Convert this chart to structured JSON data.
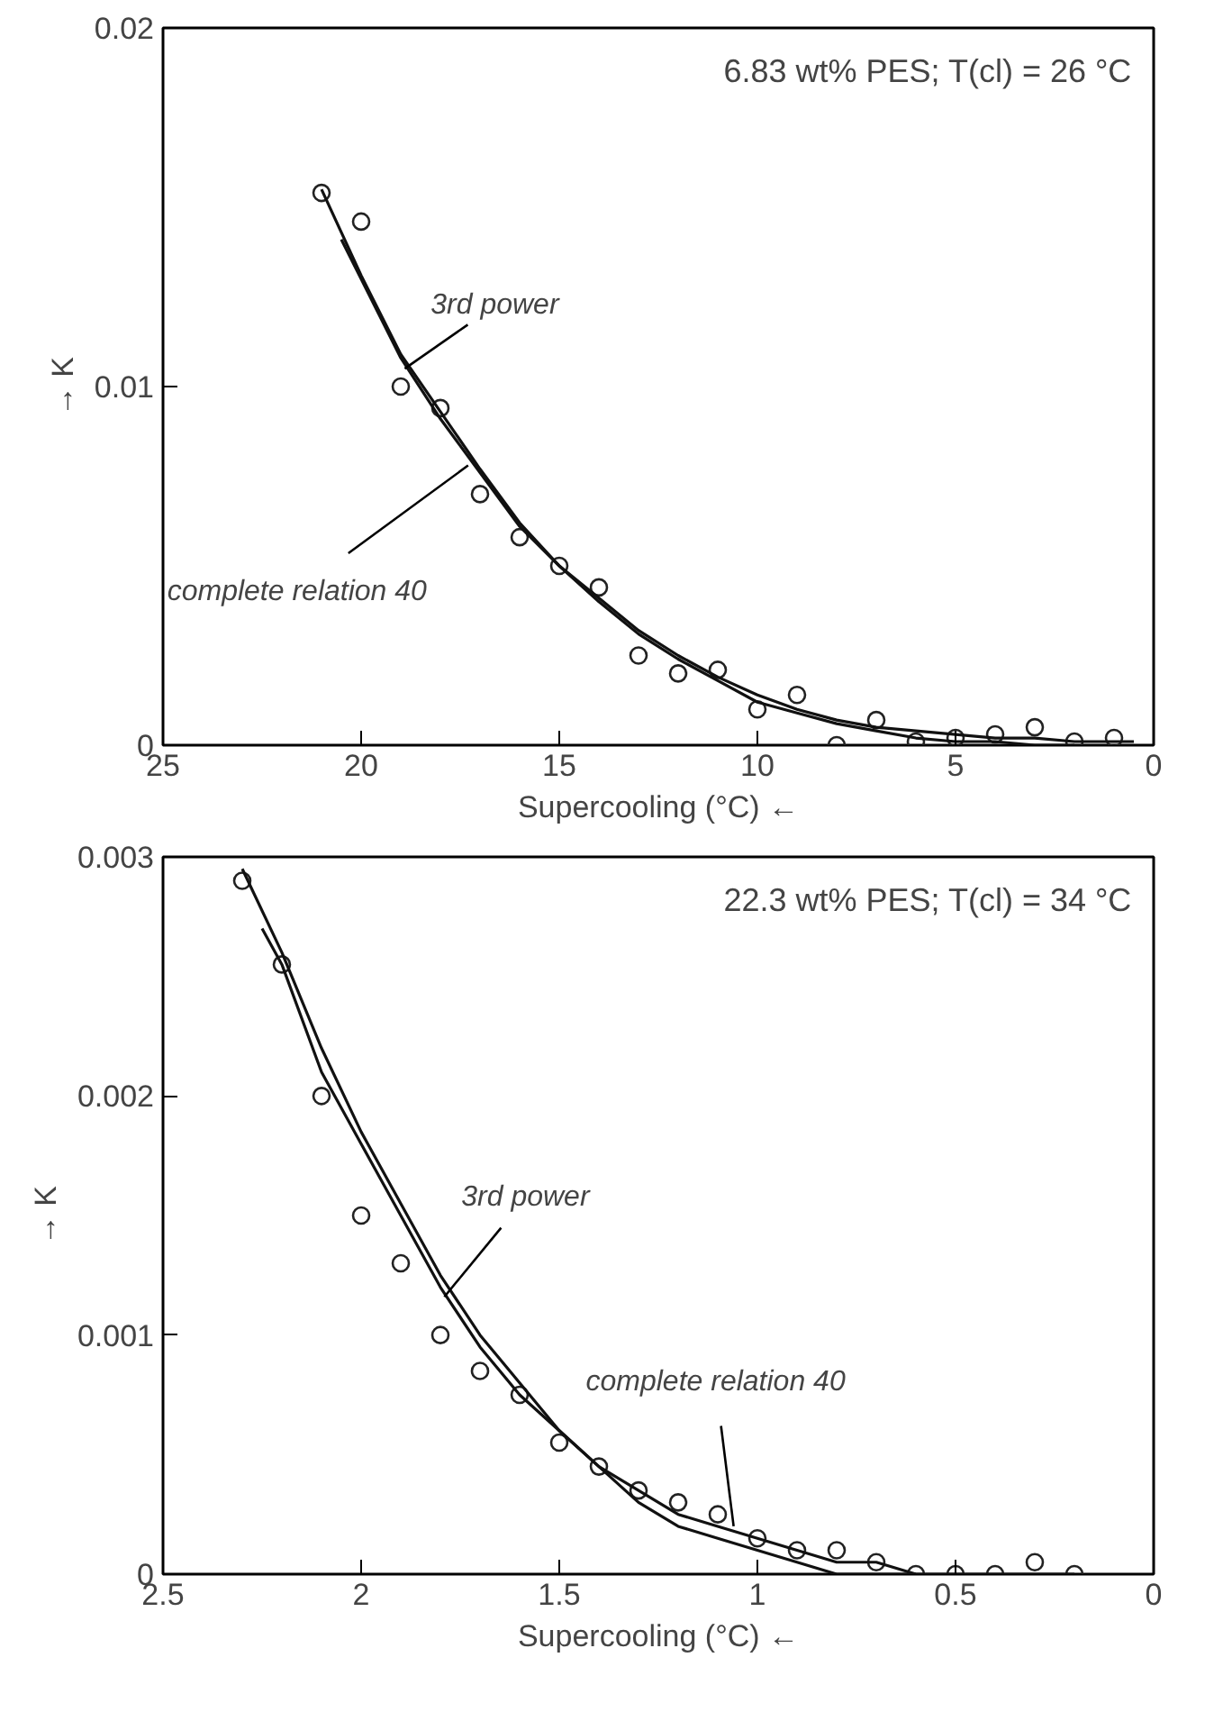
{
  "chart_data": [
    {
      "type": "scatter",
      "xlabel": "Supercooling (°C) ←",
      "ylabel": "→ K",
      "xlim": [
        25,
        0
      ],
      "ylim": [
        0,
        0.02
      ],
      "xticks": [
        25,
        20,
        15,
        10,
        5,
        0
      ],
      "yticks": [
        0,
        0.01,
        0.02
      ],
      "annotations": [
        {
          "text": "6.83 wt% PES; T(cl) = 26 °C"
        },
        {
          "text": "3rd power",
          "x": 18.9,
          "y": 0.0105
        },
        {
          "text": "complete relation 40",
          "x": 17.3,
          "y": 0.0078
        }
      ],
      "series": [
        {
          "marker": "circle",
          "color": "#222222",
          "x": [
            21,
            20,
            19,
            18,
            17,
            16,
            15,
            14,
            13,
            12,
            11,
            10,
            9,
            8,
            7,
            6,
            5,
            4,
            3,
            2,
            1
          ],
          "values": [
            0.0154,
            0.0146,
            0.01,
            0.0094,
            0.007,
            0.0058,
            0.005,
            0.0044,
            0.0025,
            0.002,
            0.0021,
            0.001,
            0.0014,
            0.0,
            0.0007,
            0.0001,
            0.0002,
            0.0003,
            0.0005,
            0.0001,
            0.0002
          ]
        },
        {
          "type": "line",
          "line_style": "solid",
          "color": "#111111",
          "x": [
            21,
            20,
            19,
            18,
            17,
            16,
            15,
            14,
            13,
            12,
            11,
            10,
            9,
            8,
            7,
            6,
            5,
            4,
            3,
            2
          ],
          "values": [
            0.0155,
            0.0131,
            0.0109,
            0.0093,
            0.0077,
            0.0062,
            0.005,
            0.004,
            0.0031,
            0.0024,
            0.0018,
            0.0012,
            0.0009,
            0.0006,
            0.0004,
            0.0002,
            0.0001,
            0.0001,
            0.0,
            0.0
          ]
        },
        {
          "type": "line",
          "line_style": "solid",
          "color": "#111111",
          "x": [
            20.5,
            20,
            19,
            18,
            17,
            16,
            15,
            14,
            13,
            12,
            11,
            10,
            9,
            8,
            7,
            6,
            5,
            4,
            3,
            2,
            1,
            0.5
          ],
          "values": [
            0.0141,
            0.013,
            0.0108,
            0.0091,
            0.0076,
            0.0061,
            0.005,
            0.0041,
            0.0032,
            0.0025,
            0.0019,
            0.0014,
            0.001,
            0.0007,
            0.0005,
            0.0004,
            0.0003,
            0.0002,
            0.0002,
            0.0001,
            0.0001,
            0.0001
          ]
        }
      ]
    },
    {
      "type": "scatter",
      "xlabel": "Supercooling (°C) ←",
      "ylabel": "→ K",
      "xlim": [
        2.5,
        0
      ],
      "ylim": [
        0,
        0.003
      ],
      "xticks": [
        2.5,
        2,
        1.5,
        1,
        0.5,
        0
      ],
      "yticks": [
        0,
        0.001,
        0.002,
        0.003
      ],
      "annotations": [
        {
          "text": "22.3 wt% PES; T(cl) = 34 °C"
        },
        {
          "text": "3rd power",
          "x": 1.79,
          "y": 0.00116
        },
        {
          "text": "complete relation 40",
          "x": 1.06,
          "y": 0.0002
        }
      ],
      "series": [
        {
          "marker": "circle",
          "color": "#222222",
          "x": [
            2.3,
            2.2,
            2.1,
            2.0,
            1.9,
            1.8,
            1.7,
            1.6,
            1.5,
            1.4,
            1.3,
            1.2,
            1.1,
            1.0,
            0.9,
            0.8,
            0.7,
            0.6,
            0.5,
            0.4,
            0.3,
            0.2
          ],
          "values": [
            0.0029,
            0.00255,
            0.002,
            0.0015,
            0.0013,
            0.001,
            0.00085,
            0.00075,
            0.00055,
            0.00045,
            0.00035,
            0.0003,
            0.00025,
            0.00015,
            0.0001,
            0.0001,
            5e-05,
            0.0,
            0.0,
            0.0,
            5e-05,
            0.0
          ]
        },
        {
          "type": "line",
          "line_style": "solid",
          "color": "#111111",
          "x": [
            2.3,
            2.2,
            2.1,
            2.0,
            1.9,
            1.8,
            1.7,
            1.6,
            1.5,
            1.4,
            1.3,
            1.2,
            1.1,
            1.0,
            0.9,
            0.8,
            0.7,
            0.6
          ],
          "values": [
            0.00295,
            0.0026,
            0.0022,
            0.00185,
            0.00155,
            0.00125,
            0.001,
            0.0008,
            0.0006,
            0.00045,
            0.0003,
            0.0002,
            0.00015,
            0.0001,
            5e-05,
            0.0,
            0.0,
            0.0
          ]
        },
        {
          "type": "line",
          "line_style": "solid",
          "color": "#111111",
          "x": [
            2.25,
            2.2,
            2.1,
            2.0,
            1.9,
            1.8,
            1.7,
            1.6,
            1.5,
            1.4,
            1.3,
            1.2,
            1.1,
            1.0,
            0.9,
            0.8,
            0.7,
            0.6,
            0.5,
            0.4,
            0.2
          ],
          "values": [
            0.0027,
            0.00255,
            0.0021,
            0.0018,
            0.0015,
            0.0012,
            0.00095,
            0.00075,
            0.0006,
            0.00045,
            0.00035,
            0.00025,
            0.0002,
            0.00015,
            0.0001,
            5e-05,
            5e-05,
            0.0,
            0.0,
            0.0,
            0.0
          ]
        }
      ]
    }
  ]
}
